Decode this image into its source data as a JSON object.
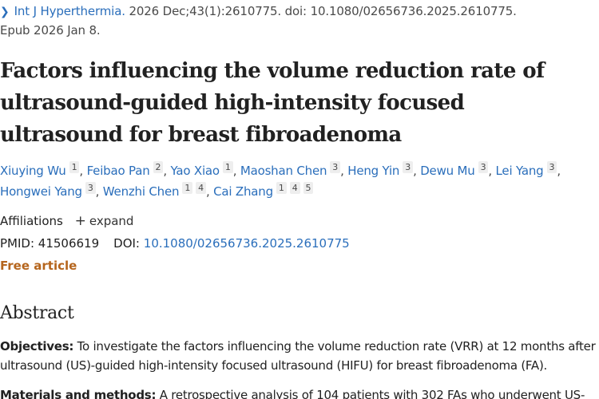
{
  "citation": {
    "journal": "Int J Hyperthermia.",
    "details": " 2026 Dec;43(1):2610775. doi: 10.1080/02656736.2025.2610775.",
    "epub": "Epub 2026 Jan 8."
  },
  "title": "Factors influencing the volume reduction rate of ultrasound-guided high-intensity focused ultrasound for breast fibroadenoma",
  "authors": [
    {
      "name": "Xiuying Wu",
      "affils": [
        "1"
      ]
    },
    {
      "name": "Feibao Pan",
      "affils": [
        "2"
      ]
    },
    {
      "name": "Yao Xiao",
      "affils": [
        "1"
      ]
    },
    {
      "name": "Maoshan Chen",
      "affils": [
        "3"
      ]
    },
    {
      "name": "Heng Yin",
      "affils": [
        "3"
      ]
    },
    {
      "name": "Dewu Mu",
      "affils": [
        "3"
      ]
    },
    {
      "name": "Lei Yang",
      "affils": [
        "3"
      ]
    },
    {
      "name": "Hongwei Yang",
      "affils": [
        "3"
      ]
    },
    {
      "name": "Wenzhi Chen",
      "affils": [
        "1",
        "4"
      ]
    },
    {
      "name": "Cai Zhang",
      "affils": [
        "1",
        "4",
        "5"
      ]
    }
  ],
  "affiliations": {
    "label": "Affiliations",
    "expand_label": "expand"
  },
  "identifiers": {
    "pmid_label": "PMID:",
    "pmid": "41506619",
    "doi_label": "DOI:",
    "doi": "10.1080/02656736.2025.2610775"
  },
  "free_label": "Free article",
  "abstract": {
    "heading": "Abstract",
    "sections": [
      {
        "label": "Objectives:",
        "text": " To investigate the factors influencing the volume reduction rate (VRR) at 12 months after ultrasound (US)-guided high-intensity focused ultrasound (HIFU) for breast fibroadenoma (FA)."
      },
      {
        "label": "Materials and methods:",
        "text": " A retrospective analysis of 104 patients with 302 FAs who underwent US-"
      }
    ]
  }
}
